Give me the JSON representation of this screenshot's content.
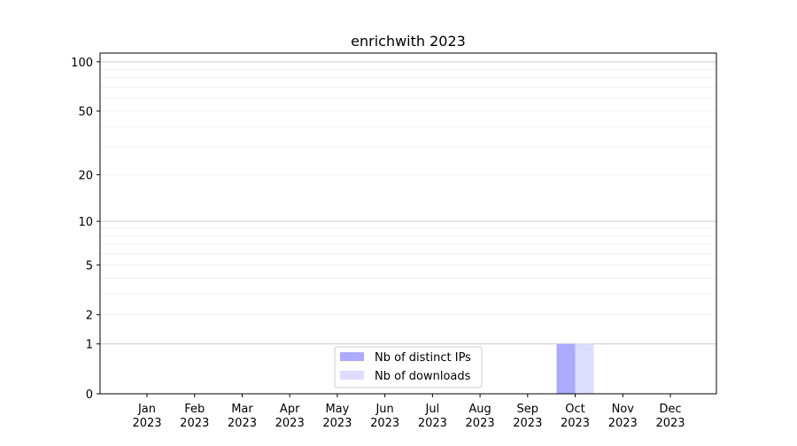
{
  "chart_data": {
    "type": "bar",
    "title": "enrichwith 2023",
    "xlabel": "",
    "ylabel": "",
    "yscale": "log(1+y)",
    "ylim": [
      0,
      113
    ],
    "yticks": [
      0,
      1,
      2,
      5,
      10,
      20,
      50,
      100
    ],
    "categories": [
      "Jan\n2023",
      "Feb\n2023",
      "Mar\n2023",
      "Apr\n2023",
      "May\n2023",
      "Jun\n2023",
      "Jul\n2023",
      "Aug\n2023",
      "Sep\n2023",
      "Oct\n2023",
      "Nov\n2023",
      "Dec\n2023"
    ],
    "series": [
      {
        "name": "Nb of distinct IPs",
        "color": "#aaaaff",
        "values": [
          0,
          0,
          0,
          0,
          0,
          0,
          0,
          0,
          0,
          1,
          0,
          0
        ]
      },
      {
        "name": "Nb of downloads",
        "color": "#ddddff",
        "values": [
          0,
          0,
          0,
          0,
          0,
          0,
          0,
          0,
          0,
          1,
          0,
          0
        ]
      }
    ],
    "grid": true,
    "legend": "bottom-center"
  }
}
